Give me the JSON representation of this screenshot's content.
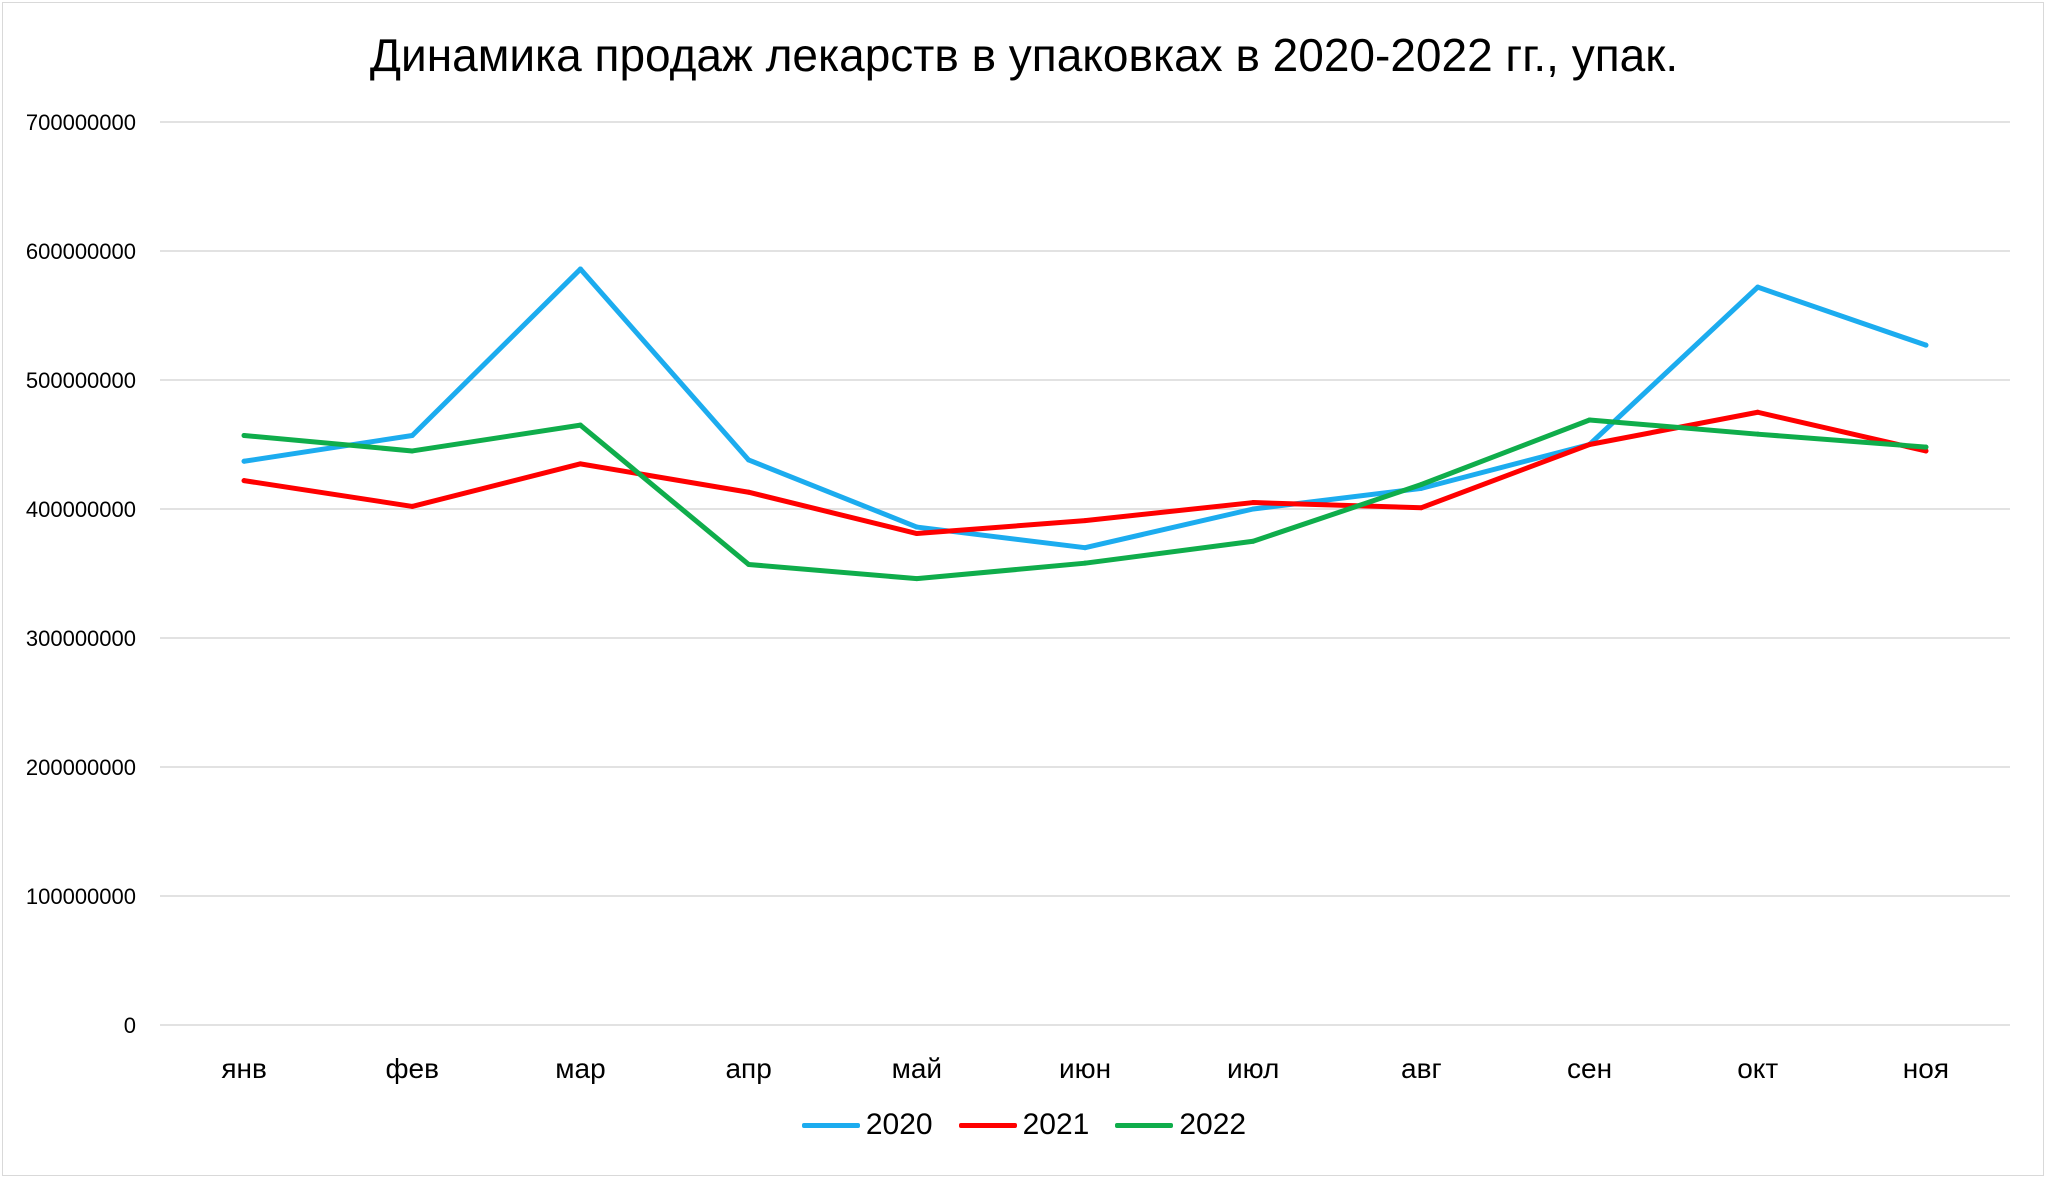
{
  "chart_data": {
    "type": "line",
    "title": "Динамика продаж лекарств в упаковках в 2020-2022 гг., упак.",
    "xlabel": "",
    "ylabel": "",
    "categories": [
      "янв",
      "фев",
      "мар",
      "апр",
      "май",
      "июн",
      "июл",
      "авг",
      "сен",
      "окт",
      "ноя"
    ],
    "ylim": [
      0,
      700000000
    ],
    "yticks": [
      "0",
      "100000000",
      "200000000",
      "300000000",
      "400000000",
      "500000000",
      "600000000",
      "700000000"
    ],
    "grid": true,
    "legend_position": "bottom",
    "series": [
      {
        "name": "2020",
        "color": "#1cacef",
        "values": [
          437000000,
          457000000,
          586000000,
          438000000,
          386000000,
          370000000,
          400000000,
          416000000,
          450000000,
          572000000,
          527000000
        ]
      },
      {
        "name": "2021",
        "color": "#ff0000",
        "values": [
          422000000,
          402000000,
          435000000,
          413000000,
          381000000,
          391000000,
          405000000,
          401000000,
          450000000,
          475000000,
          445000000
        ]
      },
      {
        "name": "2022",
        "color": "#0fad4b",
        "values": [
          457000000,
          445000000,
          465000000,
          357000000,
          346000000,
          358000000,
          375000000,
          419000000,
          469000000,
          458000000,
          448000000
        ]
      }
    ]
  }
}
